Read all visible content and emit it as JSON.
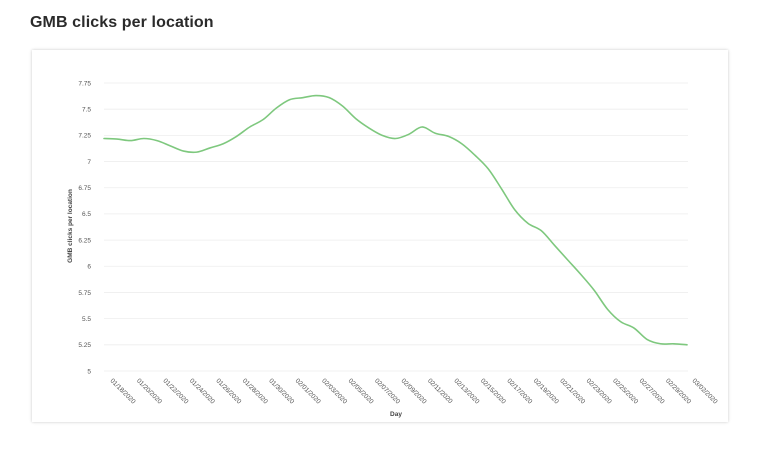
{
  "page": {
    "title": "GMB clicks per location"
  },
  "chart_data": {
    "type": "line",
    "title": "",
    "xlabel": "Day",
    "ylabel": "GMB clicks per location",
    "ylim": [
      5,
      7.75
    ],
    "yticks": [
      5,
      5.25,
      5.5,
      5.75,
      6,
      6.25,
      6.5,
      6.75,
      7,
      7.25,
      7.5,
      7.75
    ],
    "ytick_labels": [
      "5",
      "5.25",
      "5.5",
      "5.75",
      "6",
      "6.25",
      "6.5",
      "6.75",
      "7",
      "7.25",
      "7.5",
      "7.75"
    ],
    "x_tick_labels": [
      "01/18/2020",
      "01/20/2020",
      "01/22/2020",
      "01/24/2020",
      "01/26/2020",
      "01/28/2020",
      "01/30/2020",
      "02/01/2020",
      "02/03/2020",
      "02/05/2020",
      "02/07/2020",
      "02/09/2020",
      "02/11/2020",
      "02/13/2020",
      "02/15/2020",
      "02/17/2020",
      "02/19/2020",
      "02/21/2020",
      "02/23/2020",
      "02/25/2020",
      "02/27/2020",
      "02/29/2020",
      "03/02/2020"
    ],
    "grid": true,
    "legend": "none",
    "line_color": "#7ec87e",
    "series": [
      {
        "name": "",
        "values": [
          7.22,
          7.215,
          7.2,
          7.22,
          7.2,
          7.15,
          7.1,
          7.09,
          7.13,
          7.17,
          7.24,
          7.33,
          7.4,
          7.51,
          7.59,
          7.61,
          7.63,
          7.61,
          7.53,
          7.41,
          7.32,
          7.25,
          7.22,
          7.26,
          7.33,
          7.27,
          7.24,
          7.17,
          7.06,
          6.93,
          6.74,
          6.54,
          6.41,
          6.34,
          6.2,
          6.06,
          5.92,
          5.77,
          5.59,
          5.47,
          5.41,
          5.3,
          5.26,
          5.26,
          5.25
        ]
      }
    ]
  }
}
